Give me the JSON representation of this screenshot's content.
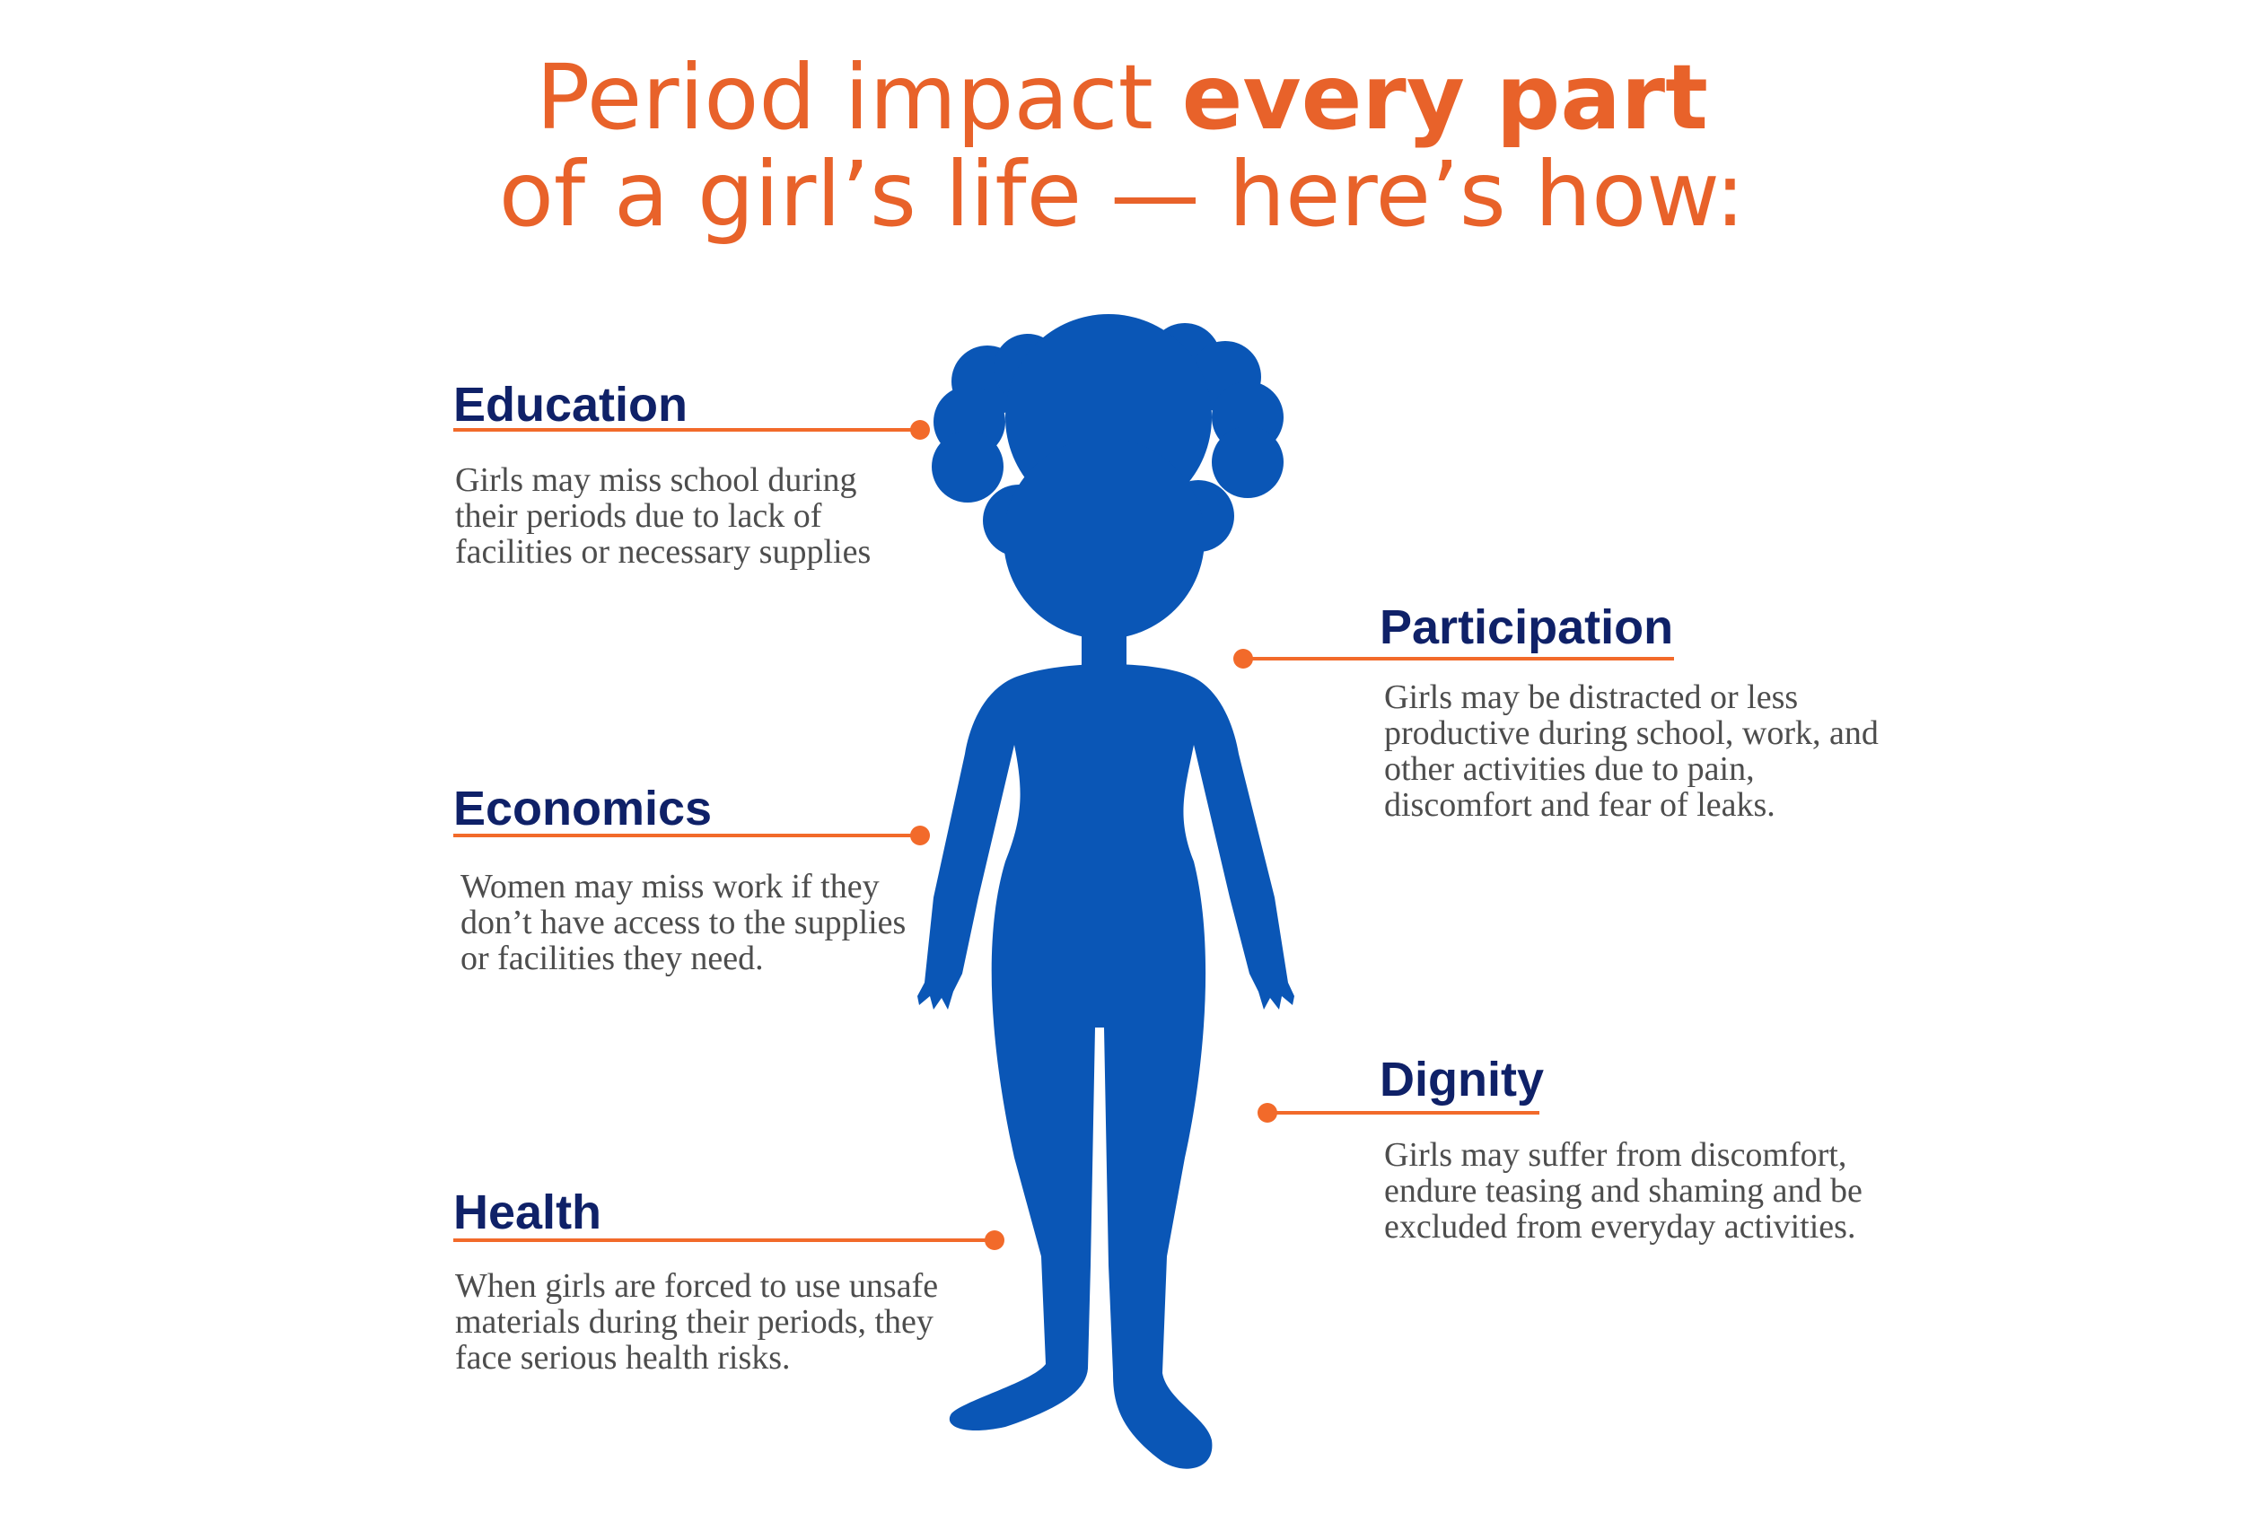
{
  "title": {
    "prefix": "Period impact ",
    "emphasis": "every part",
    "line2": "of a girl’s life — here’s how:"
  },
  "colors": {
    "title": "#E8622A",
    "heading": "#0F2168",
    "body_text": "#4d4d4d",
    "connector": "#F26A2A",
    "figure": "#0A56B6"
  },
  "impacts": [
    {
      "heading": "Education",
      "text": "Girls may miss school during their periods due to lack of facilities or necessary supplies"
    },
    {
      "heading": "Participation",
      "text": "Girls may be distracted or less productive during school, work, and other activities due to pain, discomfort and fear of leaks."
    },
    {
      "heading": "Economics",
      "text": "Women may miss work if they don’t have access to the supplies or facilities they need."
    },
    {
      "heading": "Dignity",
      "text": "Girls may suffer from discomfort, endure teasing and shaming and be excluded from everyday activities."
    },
    {
      "heading": "Health",
      "text": "When girls are forced to use unsafe materials during their periods, they face serious health risks."
    }
  ],
  "figure": {
    "icon": "girl-silhouette-icon"
  }
}
